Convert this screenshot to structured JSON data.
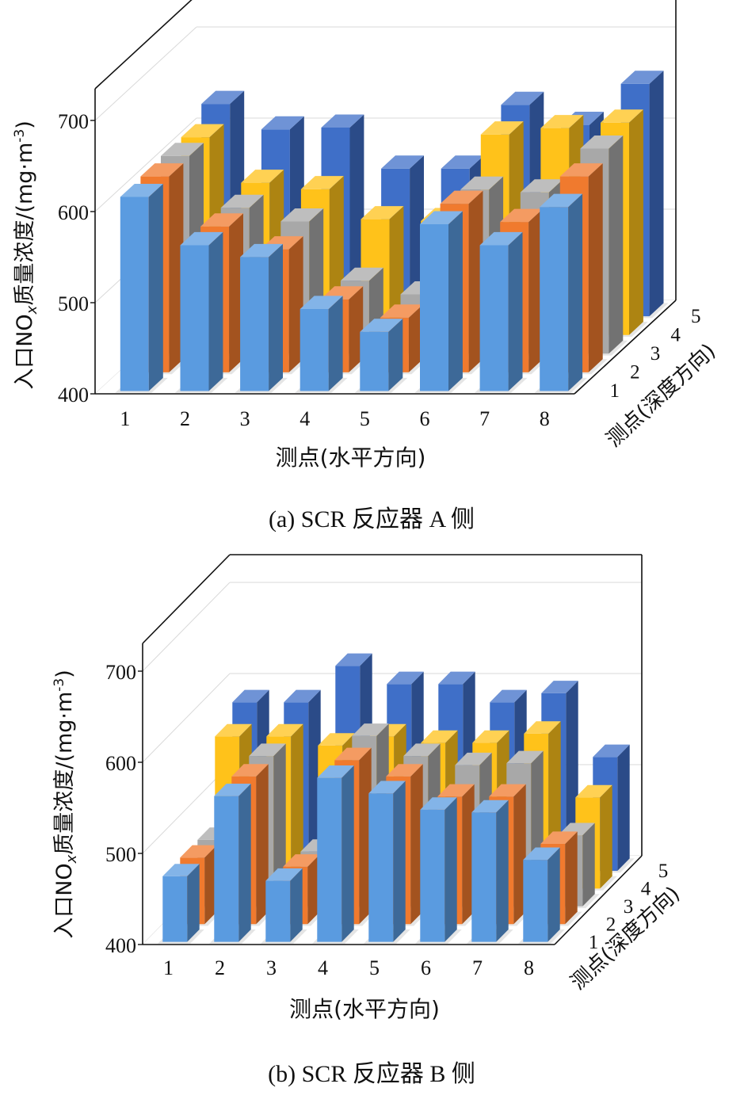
{
  "chart_data": [
    {
      "type": "bar",
      "caption": "(a)  SCR 反应器 A 侧",
      "ylabel_main": "入口NO",
      "ylabel_sub": "x",
      "ylabel_rest": "质量浓度/(mg·m",
      "ylabel_exp": "-3",
      "ylabel_close": ")",
      "xlabel": "测点(水平方向)",
      "zlabel": "测点(深度方向)",
      "ylim": [
        400,
        700
      ],
      "yticks": [
        "400",
        "500",
        "600",
        "700"
      ],
      "categories": [
        "1",
        "2",
        "3",
        "4",
        "5",
        "6",
        "7",
        "8"
      ],
      "depth_labels": [
        "1",
        "2",
        "3",
        "4",
        "5"
      ],
      "series": [
        {
          "values": [
            613,
            560,
            547,
            490,
            465,
            583,
            560,
            602
          ]
        },
        {
          "values": [
            615,
            560,
            535,
            480,
            460,
            585,
            565,
            615
          ]
        },
        {
          "values": [
            617,
            560,
            545,
            480,
            465,
            580,
            577,
            625
          ]
        },
        {
          "values": [
            617,
            567,
            560,
            527,
            525,
            620,
            627,
            633
          ]
        },
        {
          "values": [
            633,
            605,
            607,
            562,
            562,
            632,
            610,
            655
          ]
        }
      ]
    },
    {
      "type": "bar",
      "caption": "(b)  SCR 反应器 B 侧",
      "ylabel_main": "入口NO",
      "ylabel_sub": "x",
      "ylabel_rest": "质量浓度/(mg·m",
      "ylabel_exp": "-3",
      "ylabel_close": ")",
      "xlabel": "测点(水平方向)",
      "zlabel": "测点(深度方向)",
      "ylim": [
        400,
        700
      ],
      "yticks": [
        "400",
        "500",
        "600",
        "700"
      ],
      "categories": [
        "1",
        "2",
        "3",
        "4",
        "5",
        "6",
        "7",
        "8"
      ],
      "depth_labels": [
        "1",
        "2",
        "3",
        "4",
        "5"
      ],
      "series": [
        {
          "values": [
            472,
            560,
            467,
            580,
            563,
            545,
            542,
            490
          ]
        },
        {
          "values": [
            473,
            562,
            463,
            580,
            562,
            540,
            540,
            488
          ]
        },
        {
          "values": [
            473,
            565,
            460,
            587,
            565,
            555,
            557,
            478
          ]
        },
        {
          "values": [
            567,
            567,
            557,
            567,
            560,
            560,
            570,
            500
          ]
        },
        {
          "values": [
            585,
            585,
            625,
            605,
            605,
            585,
            595,
            525
          ]
        }
      ]
    }
  ],
  "colors": {
    "depth": [
      "#5a9be0",
      "#f07a2e",
      "#a8a8a8",
      "#ffc21a",
      "#3f6fc8"
    ],
    "axis": "#111111",
    "grid": "#d9d9d9"
  }
}
